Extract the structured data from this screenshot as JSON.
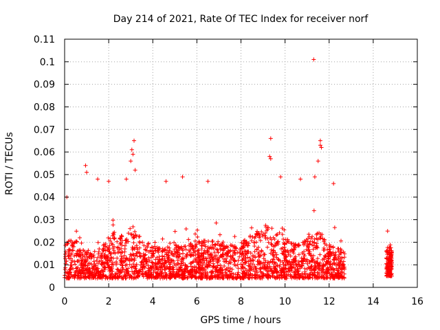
{
  "chart_data": {
    "type": "scatter",
    "title": "Day 214 of 2021, Rate Of TEC Index for receiver norf",
    "xlabel": "GPS time / hours",
    "ylabel": "ROTI / TECUs",
    "xlim": [
      0,
      16
    ],
    "ylim": [
      0,
      0.11
    ],
    "x_ticks": [
      0,
      2,
      4,
      6,
      8,
      10,
      12,
      14,
      16
    ],
    "x_tick_labels": [
      "0",
      "2",
      "4",
      "6",
      "8",
      "10",
      "12",
      "14",
      "16"
    ],
    "y_ticks": [
      0,
      0.01,
      0.02,
      0.03,
      0.04,
      0.05,
      0.06,
      0.07,
      0.08,
      0.09,
      0.1,
      0.11
    ],
    "y_tick_labels": [
      "0",
      "0.01",
      "0.02",
      "0.03",
      "0.04",
      "0.05",
      "0.06",
      "0.07",
      "0.08",
      "0.09",
      "0.1",
      "0.11"
    ],
    "grid": true,
    "marker": "plus",
    "color": "#ff0000",
    "segments": [
      {
        "x_start": 0.0,
        "x_end": 12.7,
        "typical_max": 0.03,
        "typical_min": 0.004
      },
      {
        "x_start": 14.6,
        "x_end": 14.85,
        "typical_max": 0.027,
        "typical_min": 0.005
      }
    ],
    "notable_points": [
      {
        "x": 0.1,
        "y": 0.04
      },
      {
        "x": 0.95,
        "y": 0.054
      },
      {
        "x": 1.0,
        "y": 0.051
      },
      {
        "x": 1.5,
        "y": 0.048
      },
      {
        "x": 2.0,
        "y": 0.047
      },
      {
        "x": 2.8,
        "y": 0.048
      },
      {
        "x": 3.0,
        "y": 0.056
      },
      {
        "x": 3.05,
        "y": 0.061
      },
      {
        "x": 3.1,
        "y": 0.059
      },
      {
        "x": 3.15,
        "y": 0.065
      },
      {
        "x": 3.2,
        "y": 0.052
      },
      {
        "x": 4.6,
        "y": 0.047
      },
      {
        "x": 5.35,
        "y": 0.049
      },
      {
        "x": 6.5,
        "y": 0.047
      },
      {
        "x": 9.35,
        "y": 0.066
      },
      {
        "x": 9.3,
        "y": 0.058
      },
      {
        "x": 9.35,
        "y": 0.057
      },
      {
        "x": 9.8,
        "y": 0.049
      },
      {
        "x": 10.7,
        "y": 0.048
      },
      {
        "x": 11.3,
        "y": 0.101
      },
      {
        "x": 11.5,
        "y": 0.056
      },
      {
        "x": 11.6,
        "y": 0.065
      },
      {
        "x": 11.6,
        "y": 0.063
      },
      {
        "x": 11.65,
        "y": 0.062
      },
      {
        "x": 11.35,
        "y": 0.049
      },
      {
        "x": 12.2,
        "y": 0.046
      }
    ]
  }
}
